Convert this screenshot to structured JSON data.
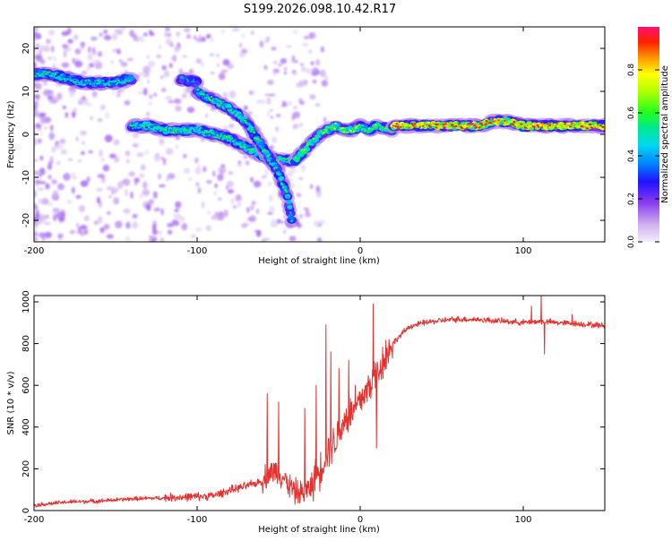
{
  "title": "S199.2026.098.10.42.R17",
  "colors": {
    "snr_line": "#e8302e",
    "frame": "#000000",
    "background": "#ffffff"
  },
  "chart_data": [
    {
      "type": "heatmap",
      "name": "spectrogram",
      "xlabel": "Height of straight line (km)",
      "ylabel": "Frequency (Hz)",
      "xlim": [
        -200,
        150
      ],
      "ylim": [
        -25,
        25
      ],
      "x_ticks": [
        -200,
        -100,
        0,
        100
      ],
      "y_ticks": [
        -20,
        -10,
        0,
        10,
        20
      ],
      "colorbar": {
        "label": "Normalized spectral amplitude",
        "range": [
          0,
          1
        ],
        "ticks": [
          0.0,
          0.2,
          0.4,
          0.6,
          0.8
        ]
      },
      "features": [
        {
          "name": "upper-band",
          "points": [
            [
              -200,
              14
            ],
            [
              -190,
              14
            ],
            [
              -180,
              13
            ],
            [
              -170,
              12
            ],
            [
              -160,
              12
            ],
            [
              -150,
              12
            ],
            [
              -140,
              13
            ]
          ],
          "amp": 0.45
        },
        {
          "name": "upper-band-right",
          "points": [
            [
              -110,
              13
            ],
            [
              -100,
              12
            ]
          ],
          "amp": 0.35
        },
        {
          "name": "lower-band",
          "points": [
            [
              -140,
              2
            ],
            [
              -130,
              2
            ],
            [
              -120,
              1
            ],
            [
              -110,
              1
            ],
            [
              -100,
              1
            ],
            [
              -90,
              0
            ],
            [
              -80,
              -1
            ],
            [
              -70,
              -3
            ],
            [
              -60,
              -5
            ],
            [
              -50,
              -6
            ],
            [
              -40,
              -6
            ]
          ],
          "amp": 0.5
        },
        {
          "name": "descending-band",
          "points": [
            [
              -100,
              10
            ],
            [
              -90,
              8
            ],
            [
              -80,
              6
            ],
            [
              -70,
              3
            ],
            [
              -65,
              0
            ],
            [
              -60,
              -3
            ],
            [
              -55,
              -6
            ],
            [
              -50,
              -9
            ],
            [
              -45,
              -14
            ],
            [
              -42,
              -20
            ]
          ],
          "amp": 0.5
        },
        {
          "name": "notch-rise",
          "points": [
            [
              -40,
              -6
            ],
            [
              -35,
              -4
            ],
            [
              -30,
              -2
            ],
            [
              -25,
              0
            ],
            [
              -20,
              1
            ],
            [
              -15,
              2
            ],
            [
              -10,
              1
            ],
            [
              -5,
              1
            ],
            [
              0,
              2
            ],
            [
              5,
              1
            ],
            [
              10,
              2
            ],
            [
              20,
              1
            ]
          ],
          "amp": 0.6
        },
        {
          "name": "stable-band",
          "points": [
            [
              20,
              2
            ],
            [
              40,
              2
            ],
            [
              60,
              2
            ],
            [
              75,
              2
            ],
            [
              80,
              3
            ],
            [
              90,
              3
            ],
            [
              100,
              2
            ],
            [
              110,
              2
            ],
            [
              120,
              2
            ],
            [
              135,
              2
            ],
            [
              150,
              2
            ]
          ],
          "amp": 0.85
        }
      ]
    },
    {
      "type": "line",
      "name": "snr",
      "xlabel": "Height of straight line (km)",
      "ylabel": "SNR (10 * v/v)",
      "xlim": [
        -200,
        150
      ],
      "ylim": [
        0,
        1030
      ],
      "x_ticks": [
        -200,
        -100,
        0,
        100
      ],
      "y_ticks": [
        0,
        200,
        400,
        600,
        800,
        1000
      ],
      "series": [
        {
          "name": "SNR",
          "x": [
            -200,
            -180,
            -160,
            -140,
            -120,
            -100,
            -90,
            -80,
            -70,
            -60,
            -55,
            -50,
            -45,
            -40,
            -35,
            -30,
            -25,
            -20,
            -15,
            -10,
            -5,
            0,
            5,
            10,
            20,
            30,
            40,
            50,
            60,
            70,
            80,
            90,
            100,
            110,
            120,
            130,
            140,
            150
          ],
          "y": [
            25,
            40,
            45,
            55,
            60,
            65,
            70,
            95,
            115,
            140,
            180,
            180,
            130,
            85,
            75,
            110,
            180,
            280,
            330,
            420,
            460,
            520,
            580,
            650,
            800,
            880,
            900,
            910,
            915,
            915,
            910,
            905,
            900,
            905,
            900,
            895,
            890,
            885
          ]
        }
      ],
      "spikes": [
        [
          -57,
          560
        ],
        [
          -50,
          520
        ],
        [
          -34,
          490
        ],
        [
          -27,
          600
        ],
        [
          -21,
          890
        ],
        [
          -18,
          760
        ],
        [
          -13,
          680
        ],
        [
          -7,
          720
        ],
        [
          -3,
          600
        ],
        [
          8,
          990
        ],
        [
          10,
          300
        ],
        [
          105,
          980
        ],
        [
          111,
          1030
        ],
        [
          113,
          750
        ],
        [
          130,
          940
        ]
      ]
    }
  ]
}
